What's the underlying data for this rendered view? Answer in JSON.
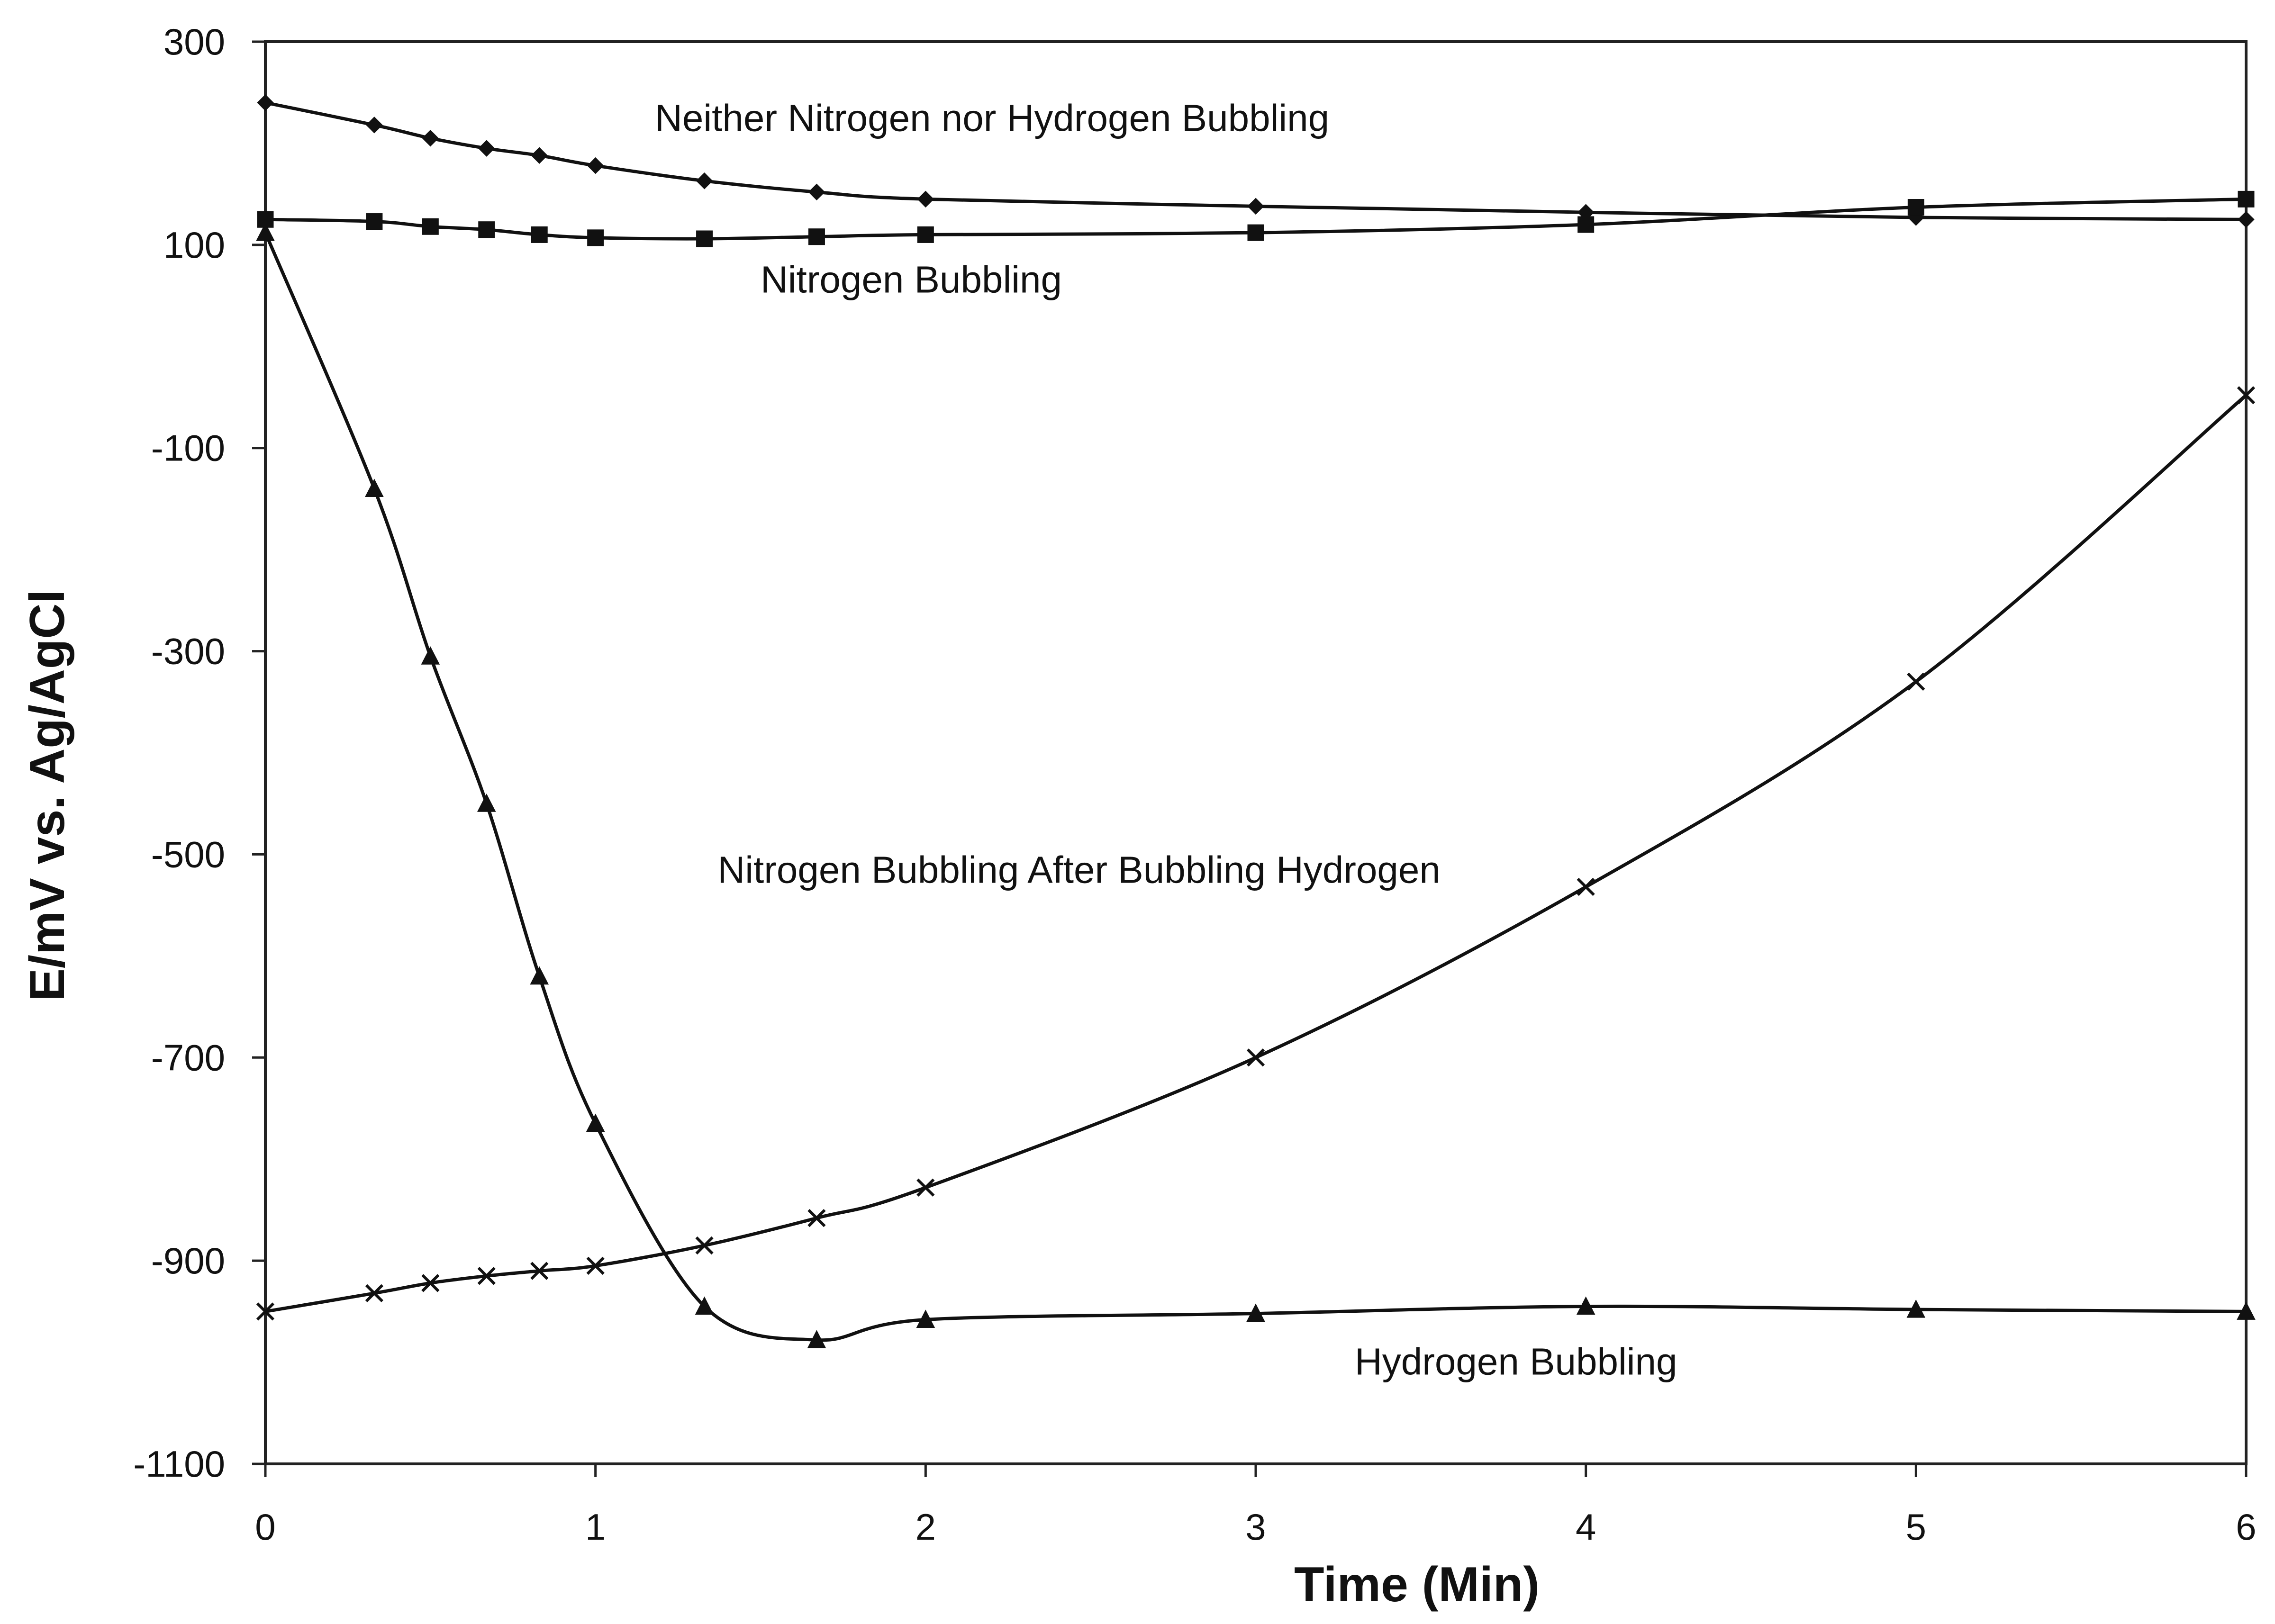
{
  "chart_data": {
    "type": "line",
    "title": "",
    "xlabel": "Time (Min)",
    "ylabel": "E/mV vs. Ag/AgCl",
    "xlim": [
      0,
      6
    ],
    "ylim": [
      -1100,
      300
    ],
    "xticks": [
      0,
      1,
      2,
      3,
      4,
      5,
      6
    ],
    "yticks": [
      300,
      100,
      -100,
      -300,
      -500,
      -700,
      -900,
      -1100
    ],
    "grid": false,
    "legend": "none",
    "series": [
      {
        "name": "Neither Nitrogen nor Hydrogen Bubbling",
        "marker": "diamond",
        "x": [
          0,
          0.33,
          0.5,
          0.67,
          0.83,
          1,
          1.33,
          1.67,
          2,
          3,
          4,
          5,
          6
        ],
        "y": [
          240,
          218,
          205,
          195,
          188,
          178,
          163,
          152,
          145,
          138,
          132,
          127,
          125
        ]
      },
      {
        "name": "Nitrogen Bubbling",
        "marker": "square",
        "x": [
          0,
          0.33,
          0.5,
          0.67,
          0.83,
          1,
          1.33,
          1.67,
          2,
          3,
          4,
          5,
          6
        ],
        "y": [
          125,
          123,
          118,
          115,
          110,
          107,
          106,
          108,
          110,
          112,
          120,
          137,
          145
        ]
      },
      {
        "name": "Hydrogen Bubbling",
        "marker": "triangle",
        "x": [
          0,
          0.33,
          0.5,
          0.67,
          0.83,
          1,
          1.33,
          1.67,
          2,
          3,
          4,
          5,
          6
        ],
        "y": [
          112,
          -140,
          -305,
          -450,
          -620,
          -765,
          -945,
          -978,
          -958,
          -952,
          -945,
          -948,
          -950
        ]
      },
      {
        "name": "Nitrogen Bubbling After Bubbling Hydrogen",
        "marker": "x",
        "x": [
          0,
          0.33,
          0.5,
          0.67,
          0.83,
          1,
          1.33,
          1.67,
          2,
          3,
          4,
          5,
          6
        ],
        "y": [
          -950,
          -932,
          -922,
          -915,
          -910,
          -905,
          -885,
          -858,
          -828,
          -700,
          -532,
          -330,
          -48
        ]
      }
    ],
    "annotations": [
      {
        "text": "Neither Nitrogen nor Hydrogen Bubbling",
        "x": 1.18,
        "y": 212
      },
      {
        "text": "Nitrogen Bubbling",
        "x": 1.5,
        "y": 53
      },
      {
        "text": "Nitrogen Bubbling After Bubbling Hydrogen",
        "x": 1.37,
        "y": -528
      },
      {
        "text": "Hydrogen Bubbling",
        "x": 3.3,
        "y": -1012
      }
    ]
  }
}
